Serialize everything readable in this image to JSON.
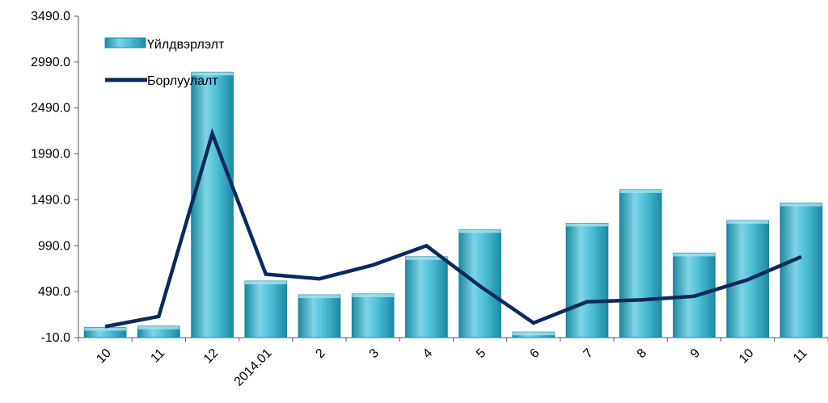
{
  "chart_data": {
    "type": "bar",
    "categories": [
      "10",
      "11",
      "12",
      "2014.01",
      "2",
      "3",
      "4",
      "5",
      "6",
      "7",
      "8",
      "9",
      "10",
      "11"
    ],
    "series": [
      {
        "name": "Үйлдвэрлэлт",
        "type": "bar",
        "values": [
          100,
          115,
          2880,
          605,
          455,
          465,
          870,
          1165,
          50,
          1235,
          1600,
          910,
          1265,
          1455
        ]
      },
      {
        "name": "Борлуулалт",
        "type": "line",
        "values": [
          110,
          220,
          2210,
          680,
          630,
          780,
          990,
          550,
          150,
          380,
          400,
          440,
          620,
          870
        ]
      }
    ],
    "y_ticks": [
      "3490.0",
      "2990.0",
      "2490.0",
      "1990.0",
      "1490.0",
      "990.0",
      "490.0",
      "-10.0"
    ],
    "ylim": [
      -10,
      3490
    ],
    "grid": false,
    "legend_position": "top-left",
    "colors": {
      "bar_light": "#7fd3e6",
      "bar_mid": "#3fb3cc",
      "bar_dark": "#1c8aa3",
      "line": "#0b2a5c"
    },
    "title": "",
    "xlabel": "",
    "ylabel": ""
  }
}
